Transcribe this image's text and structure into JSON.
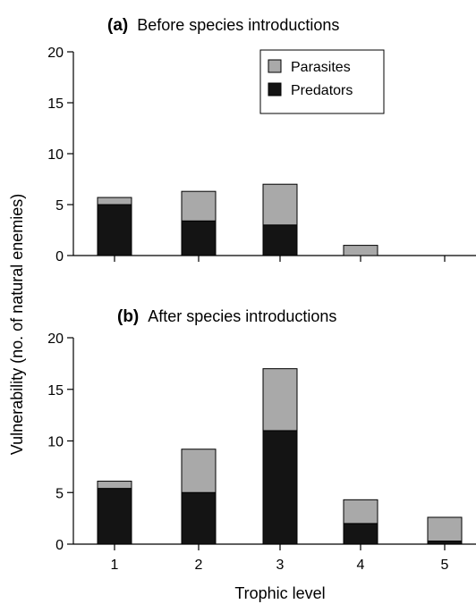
{
  "chart_data": [
    {
      "type": "bar",
      "panel_letter": "(a)",
      "title": "Before species introductions",
      "categories": [
        "1",
        "2",
        "3",
        "4",
        "5"
      ],
      "show_tick_labels": false,
      "stacked": true,
      "series": [
        {
          "name": "Predators",
          "color": "#141414",
          "values": [
            5.0,
            3.4,
            3.0,
            0,
            0
          ]
        },
        {
          "name": "Parasites",
          "color": "#a9a9a9",
          "values": [
            0.7,
            2.9,
            4.0,
            1.0,
            0
          ]
        }
      ],
      "ylim": [
        0,
        20
      ],
      "yticks": [
        "0",
        "5",
        "10",
        "15",
        "20"
      ],
      "legend": "top-right",
      "legend_order": [
        "Parasites",
        "Predators"
      ],
      "grid": false
    },
    {
      "type": "bar",
      "panel_letter": "(b)",
      "title": "After species introductions",
      "categories": [
        "1",
        "2",
        "3",
        "4",
        "5"
      ],
      "show_tick_labels": true,
      "stacked": true,
      "series": [
        {
          "name": "Predators",
          "color": "#141414",
          "values": [
            5.4,
            5.0,
            11.0,
            2.0,
            0.3
          ]
        },
        {
          "name": "Parasites",
          "color": "#a9a9a9",
          "values": [
            0.7,
            4.2,
            6.0,
            2.3,
            2.3
          ]
        }
      ],
      "ylim": [
        0,
        20
      ],
      "yticks": [
        "0",
        "5",
        "10",
        "15",
        "20"
      ],
      "grid": false
    }
  ],
  "labels": {
    "xlabel": "Trophic level",
    "ylabel": "Vulnerability (no. of natural enemies)"
  }
}
